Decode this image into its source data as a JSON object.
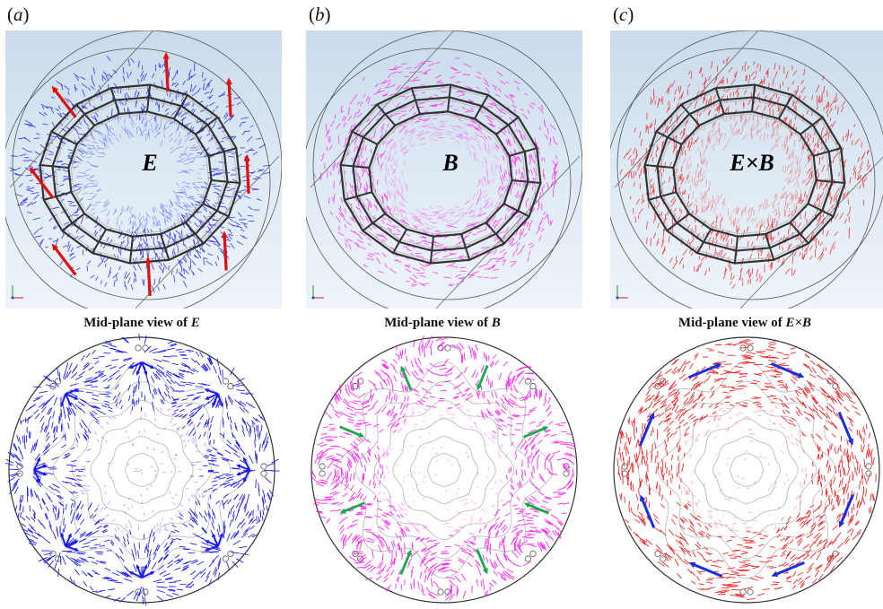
{
  "panels": [
    {
      "label": "a",
      "symbol": "E",
      "mid_title_prefix": "Mid-plane view of ",
      "mid_title_symbol": "E",
      "field_color": "#1a1aee",
      "arrow_color": "#e01010"
    },
    {
      "label": "b",
      "symbol": "B",
      "mid_title_prefix": "Mid-plane view of ",
      "mid_title_symbol": "B",
      "field_color": "#ff22ee",
      "arrow_color": "#1aa84a"
    },
    {
      "label": "c",
      "symbol": "E×B",
      "mid_title_prefix": "Mid-plane view of ",
      "mid_title_symbol": "E×B",
      "field_color": "#ee2020",
      "arrow_color": "#1a2ee0"
    }
  ]
}
